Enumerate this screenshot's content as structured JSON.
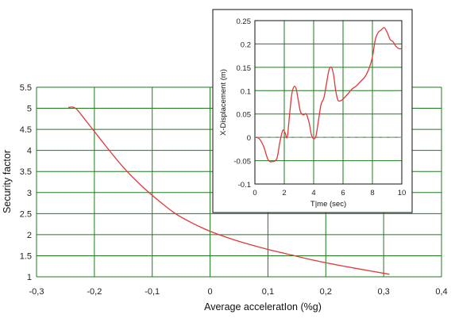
{
  "colors": {
    "grid": "#1f7a1f",
    "series": "#e0383a",
    "frame": "#111111",
    "zero_line": "#999999"
  },
  "chart_data": [
    {
      "type": "line",
      "xlabel": "Average acceleratIon (%g)",
      "ylabel": "Security factor",
      "xlim": [
        -0.3,
        0.4
      ],
      "ylim": [
        1,
        5.5
      ],
      "x_ticks": [
        -0.3,
        -0.2,
        -0.1,
        0,
        0.1,
        0.2,
        0.3,
        0.4
      ],
      "x_tick_labels": [
        "-0,3",
        "-0,2",
        "-0,1",
        "0",
        "0,1",
        "0,2",
        "0,3",
        "0,4"
      ],
      "y_ticks": [
        1,
        1.5,
        2,
        2.5,
        3,
        3.5,
        4,
        4.5,
        5,
        5.5
      ],
      "y_tick_labels": [
        "1",
        "1.5",
        "2",
        "2.5",
        "3",
        "3.5",
        "4",
        "4.5",
        "5",
        "5.5"
      ],
      "grid": true,
      "series": [
        {
          "x": [
            -0.245,
            -0.237,
            -0.23,
            -0.22,
            -0.2,
            -0.18,
            -0.15,
            -0.12,
            -0.09,
            -0.06,
            -0.03,
            0,
            0.03,
            0.06,
            0.1,
            0.14,
            0.18,
            0.22,
            0.26,
            0.31
          ],
          "y": [
            5.02,
            5.03,
            4.97,
            4.8,
            4.45,
            4.1,
            3.6,
            3.18,
            2.82,
            2.5,
            2.27,
            2.08,
            1.93,
            1.8,
            1.65,
            1.52,
            1.39,
            1.28,
            1.18,
            1.06
          ]
        }
      ]
    },
    {
      "type": "line",
      "xlabel": "T|me (sec)",
      "ylabel": "X-Displacement (m)",
      "xlim": [
        0,
        10
      ],
      "ylim": [
        -0.1,
        0.25
      ],
      "x_ticks": [
        0,
        2,
        4,
        6,
        8,
        10
      ],
      "x_tick_labels": [
        "0",
        "2",
        "4",
        "6",
        "8",
        "10"
      ],
      "y_ticks": [
        -0.1,
        -0.05,
        0,
        0.05,
        0.1,
        0.15,
        0.2,
        0.25
      ],
      "y_tick_labels": [
        "-0.1",
        "-0.05",
        "0",
        "0.05",
        "0.1",
        "0.15",
        "0.2",
        "0.25"
      ],
      "grid": true,
      "zero_line": true,
      "series": [
        {
          "x": [
            0,
            0.3,
            0.6,
            0.9,
            1.2,
            1.5,
            1.7,
            1.9,
            2.05,
            2.2,
            2.35,
            2.5,
            2.65,
            2.8,
            2.95,
            3.1,
            3.3,
            3.5,
            3.7,
            3.85,
            4.0,
            4.15,
            4.3,
            4.5,
            4.7,
            4.9,
            5.05,
            5.2,
            5.35,
            5.5,
            5.65,
            5.8,
            6.0,
            6.3,
            6.6,
            6.9,
            7.2,
            7.5,
            7.8,
            8.0,
            8.2,
            8.4,
            8.6,
            8.8,
            9.0,
            9.2,
            9.4,
            9.6,
            9.8,
            10.0
          ],
          "y": [
            0.0,
            -0.003,
            -0.02,
            -0.048,
            -0.052,
            -0.045,
            -0.01,
            0.015,
            0.01,
            0.0,
            0.045,
            0.09,
            0.108,
            0.105,
            0.08,
            0.055,
            0.048,
            0.05,
            0.03,
            0.005,
            -0.003,
            0.002,
            0.03,
            0.07,
            0.085,
            0.12,
            0.145,
            0.15,
            0.135,
            0.1,
            0.08,
            0.078,
            0.082,
            0.092,
            0.103,
            0.11,
            0.12,
            0.13,
            0.15,
            0.172,
            0.21,
            0.225,
            0.23,
            0.235,
            0.225,
            0.21,
            0.205,
            0.195,
            0.19,
            0.19
          ]
        }
      ]
    }
  ]
}
